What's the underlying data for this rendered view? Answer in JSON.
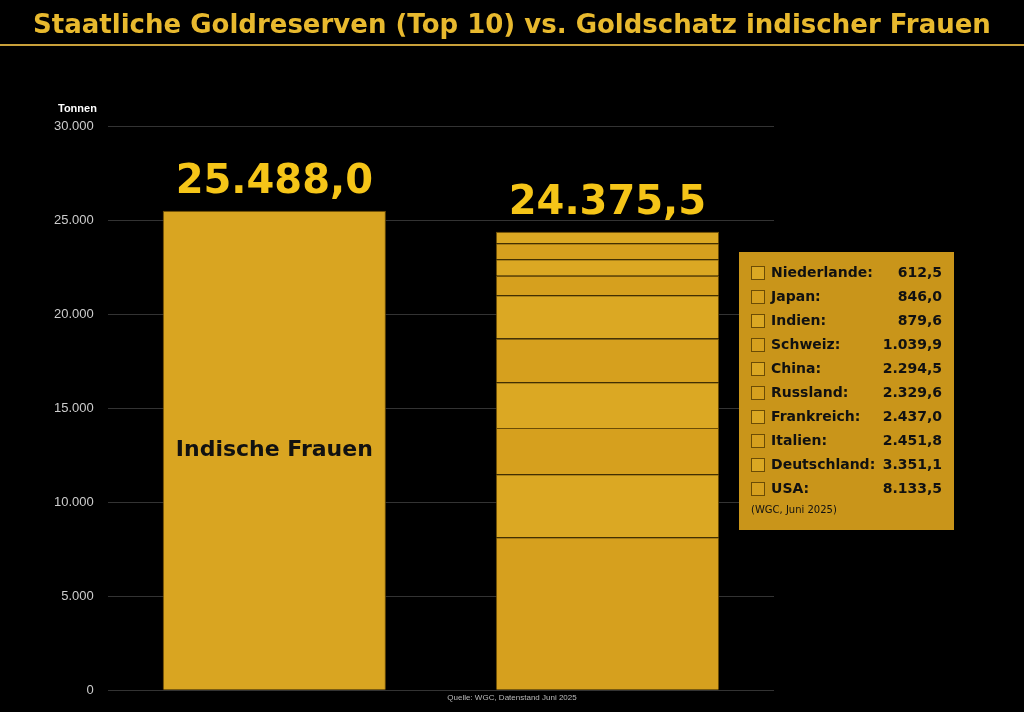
{
  "chart_data": {
    "type": "bar",
    "title": "Staatliche Goldreserven (Top 10) vs. Goldschatz indischer Frauen",
    "ylabel": "Tonnen",
    "categories": [
      null,
      null
    ],
    "stacked": true,
    "tick_labels": "y",
    "grid": "y",
    "legend": "right",
    "ylim": [
      0,
      30000
    ],
    "yticks": [
      {
        "value": 0,
        "label": "0"
      },
      {
        "value": 5000,
        "label": "5.000"
      },
      {
        "value": 10000,
        "label": "10.000"
      },
      {
        "value": 15000,
        "label": "15.000"
      },
      {
        "value": 20000,
        "label": "20.000"
      },
      {
        "value": 25000,
        "label": "25.000"
      },
      {
        "value": 30000,
        "label": "30.000"
      }
    ],
    "totals": [
      "25.488,0",
      "24.375,5"
    ],
    "annotations": [
      "612,5",
      "846,0",
      "879,6",
      "1.039,9",
      "2.294,5",
      "2.329,6",
      "2.437,0",
      "2.451,8",
      "3.351,1",
      "8.133,5",
      "(WGC, Juni 2025)",
      "Quelle: WGC, Datenstand Juni 2025"
    ],
    "series": [
      {
        "name": "Indische Frauen",
        "color": "#d9a521",
        "values": [
          25488.0,
          null
        ]
      },
      {
        "name": "USA:",
        "color": "#d6a01e",
        "values": [
          null,
          8133.5
        ]
      },
      {
        "name": "Deutschland:",
        "color": "#dba823",
        "values": [
          null,
          3351.1
        ]
      },
      {
        "name": "Italien:",
        "color": "#d6a01e",
        "values": [
          null,
          2451.8
        ]
      },
      {
        "name": "Frankreich:",
        "color": "#dba823",
        "values": [
          null,
          2437.0
        ]
      },
      {
        "name": "Russland:",
        "color": "#d6a01e",
        "values": [
          null,
          2329.6
        ]
      },
      {
        "name": "China:",
        "color": "#dba823",
        "values": [
          null,
          2294.5
        ]
      },
      {
        "name": "Schweiz:",
        "color": "#d6a01e",
        "values": [
          null,
          1039.9
        ]
      },
      {
        "name": "Indien:",
        "color": "#dba823",
        "values": [
          null,
          879.6
        ]
      },
      {
        "name": "Japan:",
        "color": "#d6a01e",
        "values": [
          null,
          846.0
        ]
      },
      {
        "name": "Niederlande:",
        "color": "#dba823",
        "values": [
          null,
          612.5
        ]
      }
    ]
  }
}
